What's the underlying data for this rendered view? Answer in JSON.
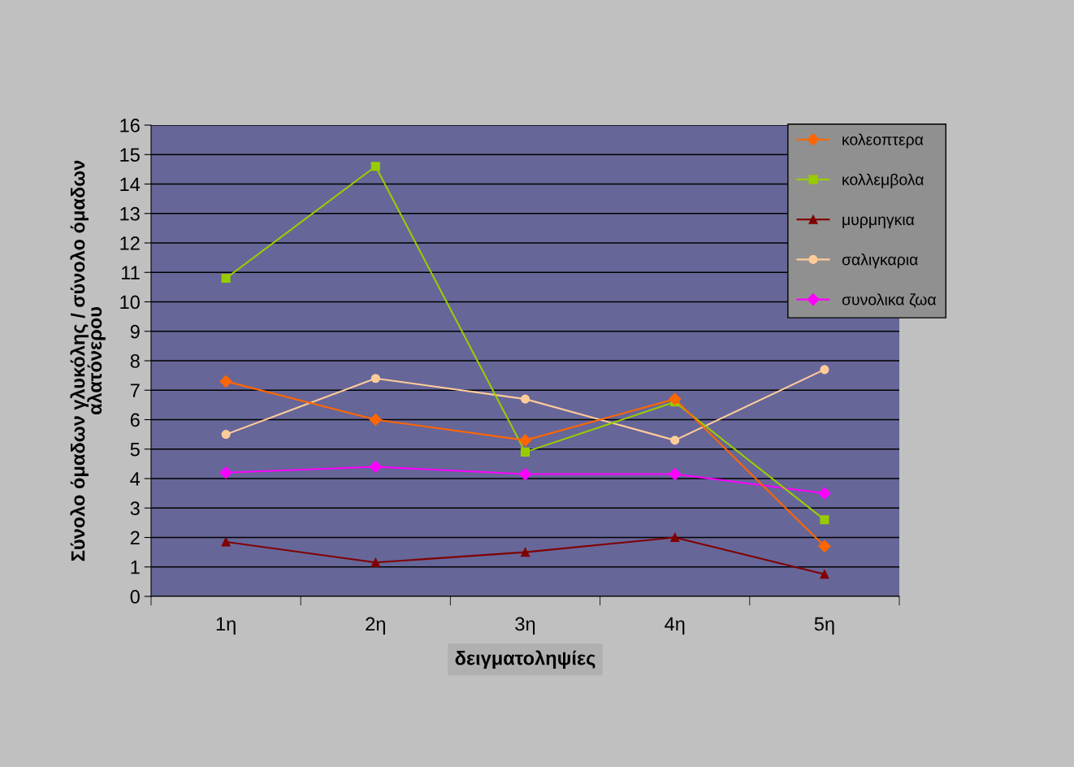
{
  "chart_data": {
    "type": "line",
    "xlabel": "δειγματοληψίες",
    "ylabel": "Σύνολο όμαδων γλυκόλης / σύνολο όμαδων\nαλατόνερου",
    "categories": [
      "1η",
      "2η",
      "3η",
      "4η",
      "5η"
    ],
    "series": [
      {
        "name": "κολεοπτερα",
        "color": "#ff6600",
        "marker": "diamond",
        "values": [
          7.3,
          6.0,
          5.3,
          6.7,
          1.7
        ]
      },
      {
        "name": "κολλεμβολα",
        "color": "#99cc00",
        "marker": "square",
        "values": [
          10.8,
          14.6,
          4.9,
          6.6,
          2.6
        ]
      },
      {
        "name": "μυρμηγκια",
        "color": "#800000",
        "marker": "triangle",
        "values": [
          1.85,
          1.15,
          1.5,
          2.0,
          0.75
        ]
      },
      {
        "name": "σαλιγκαρια",
        "color": "#ffcc99",
        "marker": "circle",
        "values": [
          5.5,
          7.4,
          6.7,
          5.3,
          7.7
        ]
      },
      {
        "name": "συνολικα ζωα",
        "color": "#ff00ff",
        "marker": "diamond",
        "values": [
          4.2,
          4.4,
          4.15,
          4.15,
          3.5
        ]
      }
    ],
    "ylim": [
      0,
      16
    ],
    "yticks": [
      0,
      1,
      2,
      3,
      4,
      5,
      6,
      7,
      8,
      9,
      10,
      11,
      12,
      13,
      14,
      15,
      16
    ],
    "grid": "y",
    "legend": "top right",
    "line_style": "solid"
  }
}
